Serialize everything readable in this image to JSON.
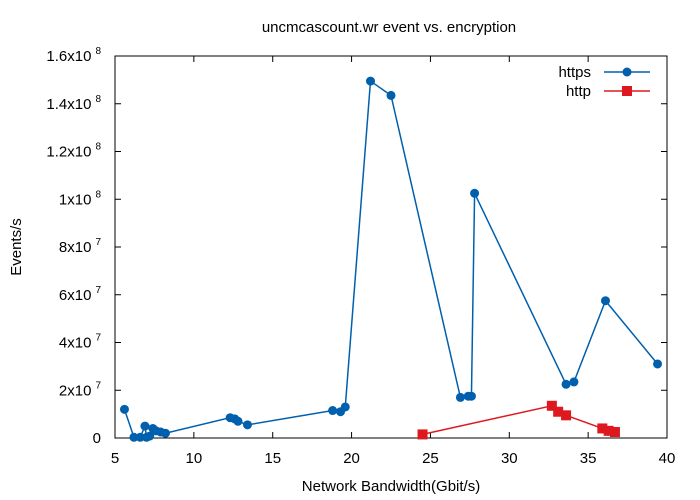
{
  "chart_data": {
    "type": "line",
    "title": "uncmcascount.wr event vs. encryption",
    "xlabel": "Network Bandwidth(Gbit/s)",
    "ylabel": "Events/s",
    "xlim": [
      5,
      40
    ],
    "ylim": [
      0,
      160000000
    ],
    "x_ticks": [
      5,
      10,
      15,
      20,
      25,
      30,
      35,
      40
    ],
    "x_tick_labels": [
      "5",
      "10",
      "15",
      "20",
      "25",
      "30",
      "35",
      "40"
    ],
    "y_ticks": [
      0,
      20000000,
      40000000,
      60000000,
      80000000,
      100000000,
      120000000,
      140000000,
      160000000
    ],
    "y_tick_labels": [
      {
        "base": "0",
        "exp": ""
      },
      {
        "base": "2x10",
        "exp": "7"
      },
      {
        "base": "4x10",
        "exp": "7"
      },
      {
        "base": "6x10",
        "exp": "7"
      },
      {
        "base": "8x10",
        "exp": "7"
      },
      {
        "base": "1x10",
        "exp": "8"
      },
      {
        "base": "1.2x10",
        "exp": "8"
      },
      {
        "base": "1.4x10",
        "exp": "8"
      },
      {
        "base": "1.6x10",
        "exp": "8"
      }
    ],
    "grid": false,
    "legend_position": "top-right",
    "series": [
      {
        "name": "https",
        "color": "#0060ad",
        "marker": "circle",
        "points": [
          [
            5.6,
            12000000
          ],
          [
            6.2,
            300000
          ],
          [
            6.6,
            300000
          ],
          [
            6.9,
            5000000
          ],
          [
            7.0,
            300000
          ],
          [
            7.2,
            800000
          ],
          [
            7.4,
            4000000
          ],
          [
            7.6,
            3000000
          ],
          [
            7.9,
            2500000
          ],
          [
            8.2,
            2000000
          ],
          [
            12.3,
            8500000
          ],
          [
            12.6,
            8000000
          ],
          [
            12.8,
            7000000
          ],
          [
            13.4,
            5500000
          ],
          [
            18.8,
            11500000
          ],
          [
            19.3,
            11000000
          ],
          [
            19.6,
            13000000
          ],
          [
            21.2,
            149500000
          ],
          [
            22.5,
            143500000
          ],
          [
            26.9,
            17000000
          ],
          [
            27.4,
            17500000
          ],
          [
            27.6,
            17500000
          ],
          [
            27.8,
            102500000
          ],
          [
            33.6,
            22500000
          ],
          [
            34.1,
            23500000
          ],
          [
            36.1,
            57500000
          ],
          [
            39.4,
            31000000
          ]
        ]
      },
      {
        "name": "http",
        "color": "#dd181f",
        "marker": "square",
        "points": [
          [
            24.5,
            1500000
          ],
          [
            32.7,
            13500000
          ],
          [
            33.1,
            11000000
          ],
          [
            33.6,
            9500000
          ],
          [
            35.9,
            4000000
          ],
          [
            36.3,
            3000000
          ],
          [
            36.7,
            2500000
          ]
        ]
      }
    ]
  }
}
